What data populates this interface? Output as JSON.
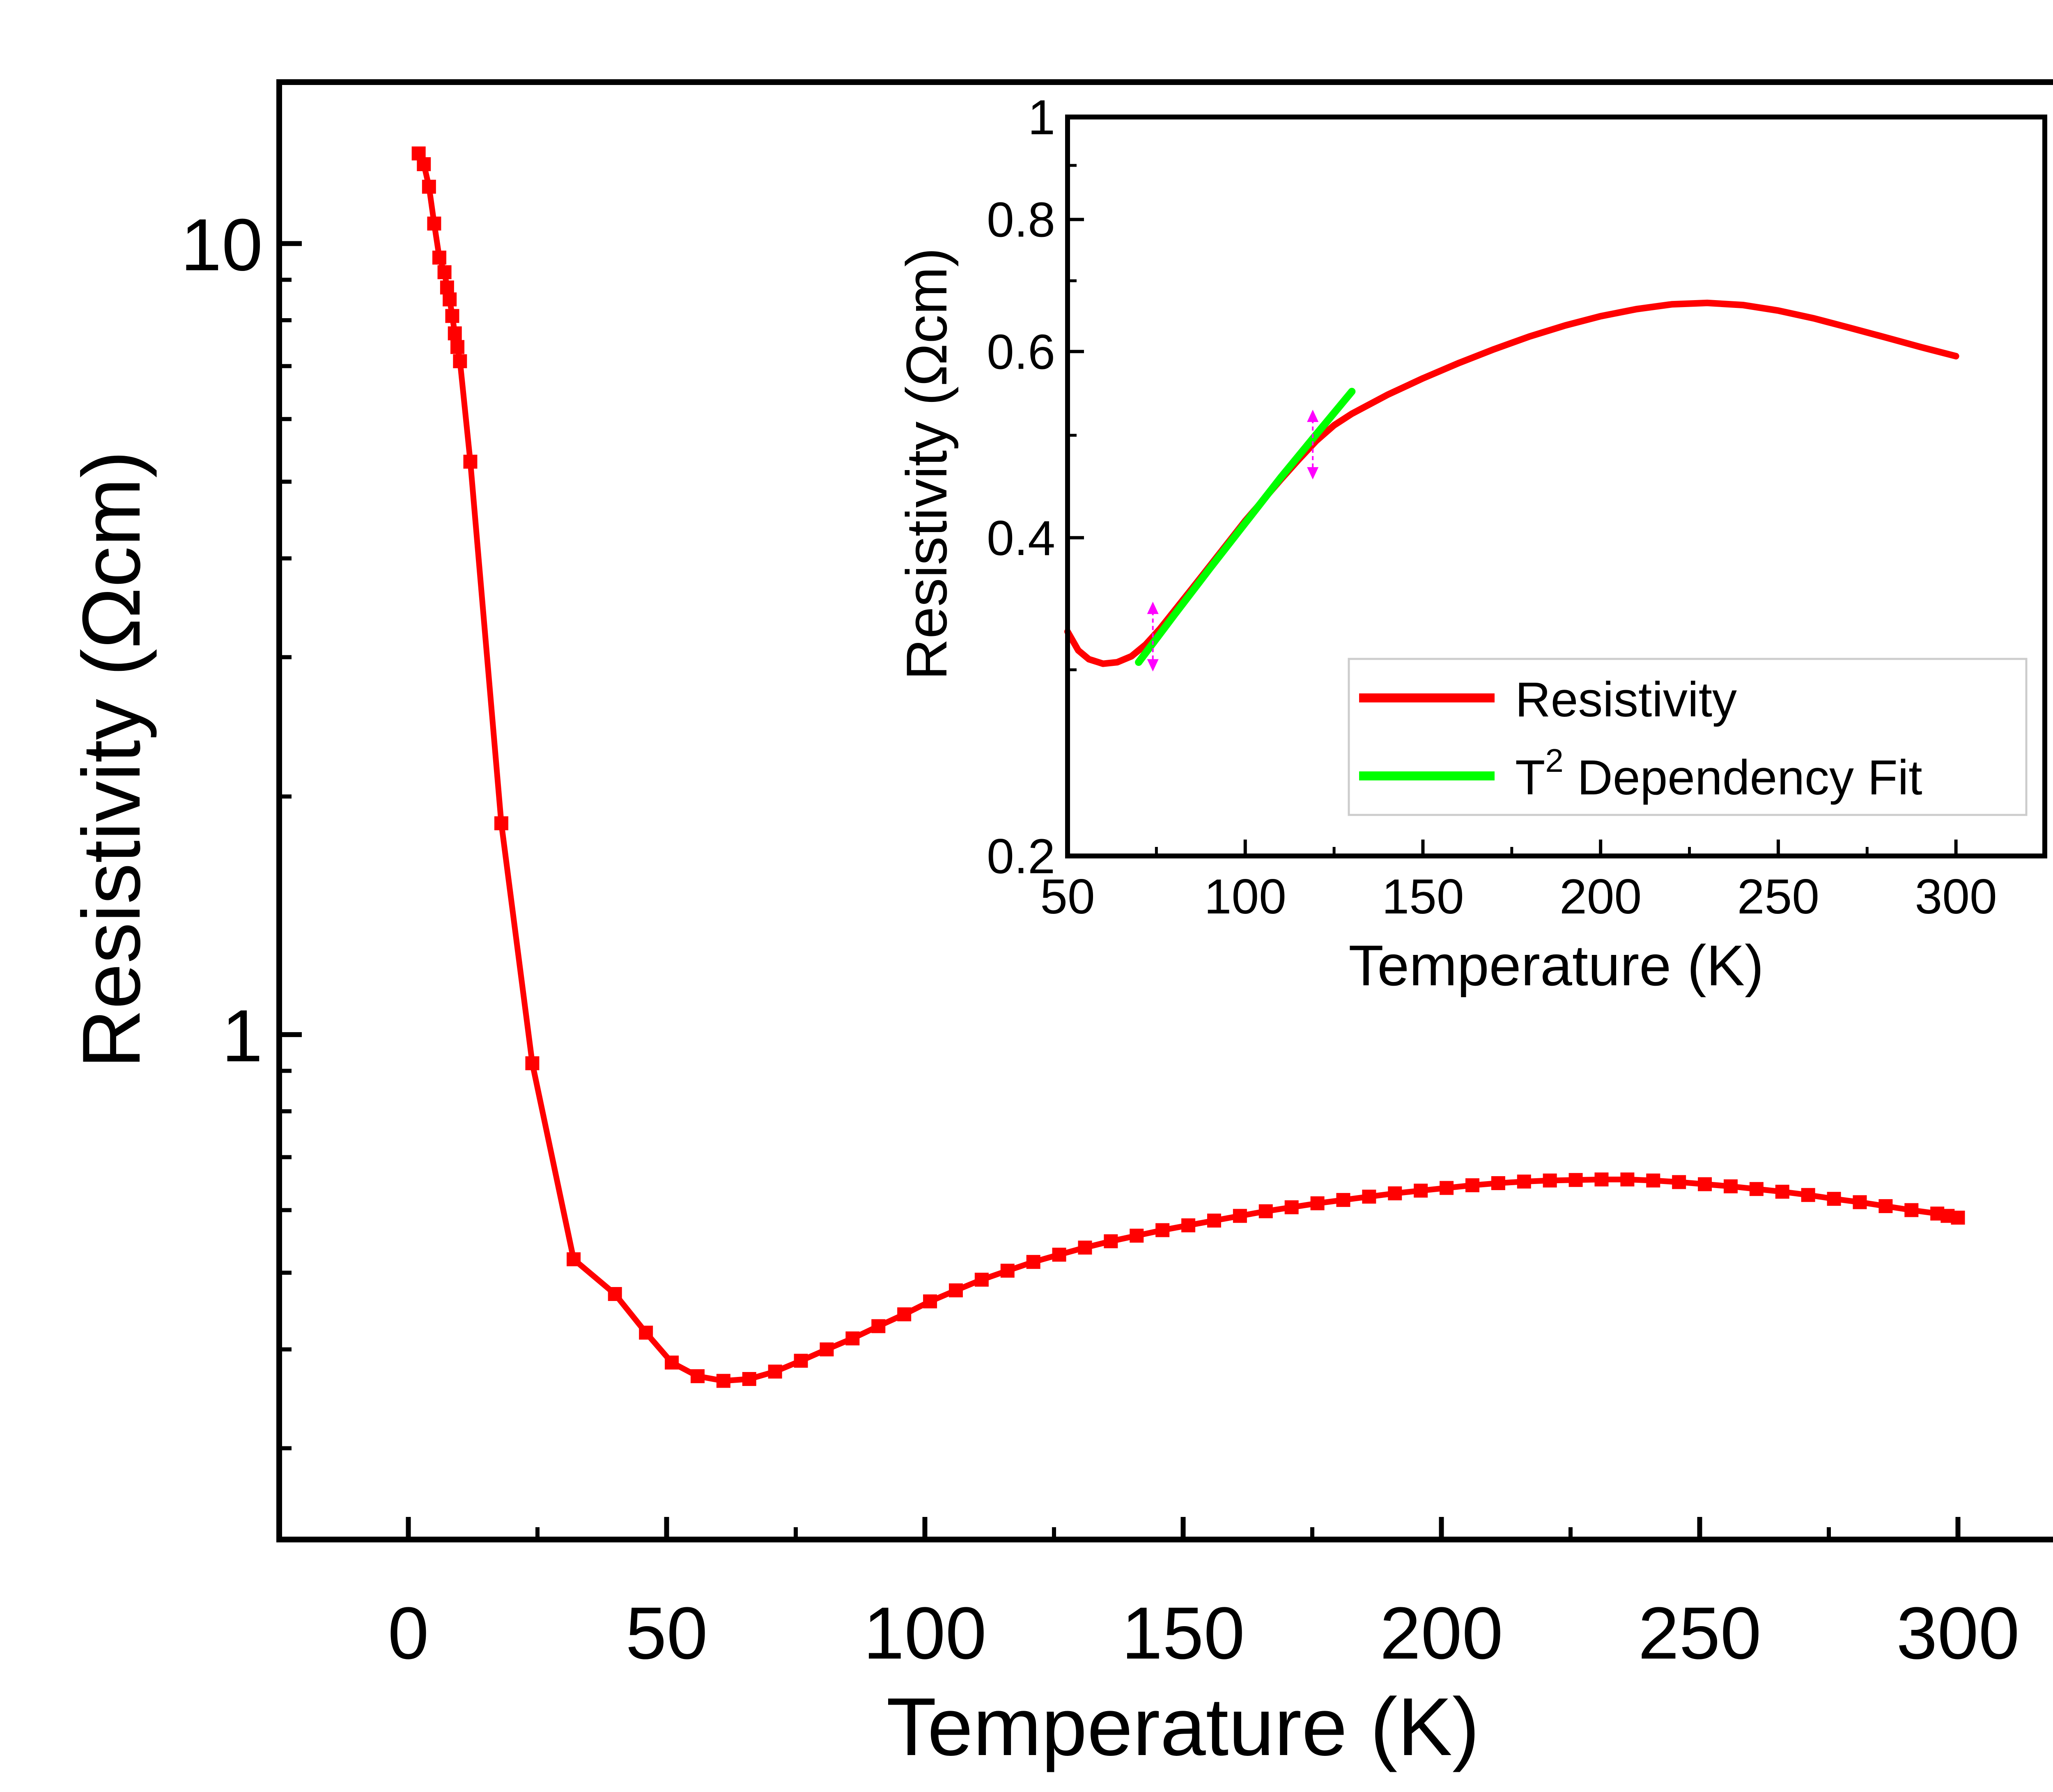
{
  "chart_data": [
    {
      "id": "main",
      "type": "line",
      "xlabel": "Temperature (K)",
      "ylabel": "Resistivity (Ωcm)",
      "xlim": [
        -25,
        325
      ],
      "ylim": [
        0.23,
        16
      ],
      "yscale": "log",
      "xticks": [
        0,
        50,
        100,
        150,
        200,
        250,
        300
      ],
      "yticks": [
        {
          "value": 1,
          "label": "1"
        },
        {
          "value": 10,
          "label": "10"
        }
      ],
      "colors": {
        "series": "#ff0000",
        "axes": "#000000"
      },
      "series": [
        {
          "name": "Resistivity",
          "marker": "square",
          "x": [
            2,
            3,
            4,
            5,
            6,
            7,
            7.5,
            8,
            8.5,
            9,
            9.5,
            10,
            12,
            18,
            24,
            32,
            40,
            46,
            51,
            56,
            61,
            66,
            71,
            76,
            81,
            86,
            91,
            96,
            101,
            106,
            111,
            116,
            121,
            126,
            131,
            136,
            141,
            146,
            151,
            156,
            161,
            166,
            171,
            176,
            181,
            186,
            191,
            196,
            201,
            206,
            211,
            216,
            221,
            226,
            231,
            236,
            241,
            246,
            251,
            256,
            261,
            266,
            271,
            276,
            281,
            286,
            291,
            296,
            298,
            300
          ],
          "y": [
            13,
            12.6,
            11.8,
            10.6,
            9.6,
            9.2,
            8.8,
            8.5,
            8.1,
            7.7,
            7.4,
            7.1,
            5.3,
            1.85,
            0.92,
            0.52,
            0.47,
            0.42,
            0.385,
            0.37,
            0.365,
            0.367,
            0.375,
            0.387,
            0.4,
            0.413,
            0.428,
            0.443,
            0.46,
            0.475,
            0.49,
            0.503,
            0.516,
            0.527,
            0.538,
            0.548,
            0.557,
            0.566,
            0.574,
            0.582,
            0.59,
            0.598,
            0.605,
            0.612,
            0.618,
            0.624,
            0.63,
            0.635,
            0.64,
            0.645,
            0.649,
            0.652,
            0.654,
            0.655,
            0.656,
            0.656,
            0.654,
            0.651,
            0.647,
            0.643,
            0.638,
            0.633,
            0.627,
            0.62,
            0.614,
            0.607,
            0.6,
            0.594,
            0.59,
            0.587
          ]
        }
      ]
    },
    {
      "id": "inset",
      "type": "line",
      "xlabel": "Temperature (K)",
      "ylabel": "Resistivity (Ωcm)",
      "xlim": [
        50,
        325
      ],
      "ylim": [
        0.2,
        1.0
      ],
      "yscale": "log",
      "xticks": [
        50,
        100,
        150,
        200,
        250,
        300
      ],
      "yticks": [
        {
          "value": 0.2,
          "label": "0.2"
        },
        {
          "value": 0.4,
          "label": "0.4"
        },
        {
          "value": 0.6,
          "label": "0.6"
        },
        {
          "value": 0.8,
          "label": "0.8"
        },
        {
          "value": 1.0,
          "label": "1"
        }
      ],
      "legend_position": "bottom-right",
      "colors": {
        "resistivity": "#ff0000",
        "fit": "#00ff00",
        "markers": "#ff00ff"
      },
      "series": [
        {
          "name": "Resistivity",
          "x": [
            50,
            53,
            56,
            60,
            64,
            68,
            72,
            76,
            80,
            85,
            90,
            95,
            100,
            105,
            110,
            115,
            120,
            125,
            130,
            140,
            150,
            160,
            170,
            180,
            190,
            200,
            210,
            220,
            230,
            240,
            250,
            260,
            270,
            280,
            290,
            300
          ],
          "y": [
            0.326,
            0.313,
            0.307,
            0.304,
            0.305,
            0.309,
            0.317,
            0.328,
            0.341,
            0.358,
            0.376,
            0.395,
            0.415,
            0.434,
            0.454,
            0.474,
            0.494,
            0.511,
            0.524,
            0.546,
            0.566,
            0.585,
            0.603,
            0.62,
            0.635,
            0.648,
            0.658,
            0.665,
            0.667,
            0.664,
            0.656,
            0.645,
            0.632,
            0.619,
            0.606,
            0.594
          ]
        },
        {
          "name": "T² Dependency Fit",
          "x": [
            70,
            80,
            90,
            100,
            110,
            120,
            130
          ],
          "y": [
            0.305,
            0.338,
            0.374,
            0.413,
            0.456,
            0.501,
            0.55
          ]
        }
      ],
      "fit_range_markers_x": [
        74,
        119
      ],
      "legend": [
        {
          "label": "Resistivity"
        },
        {
          "label": "T",
          "superscript": "2",
          "label_rest": " Dependency Fit"
        }
      ]
    }
  ]
}
